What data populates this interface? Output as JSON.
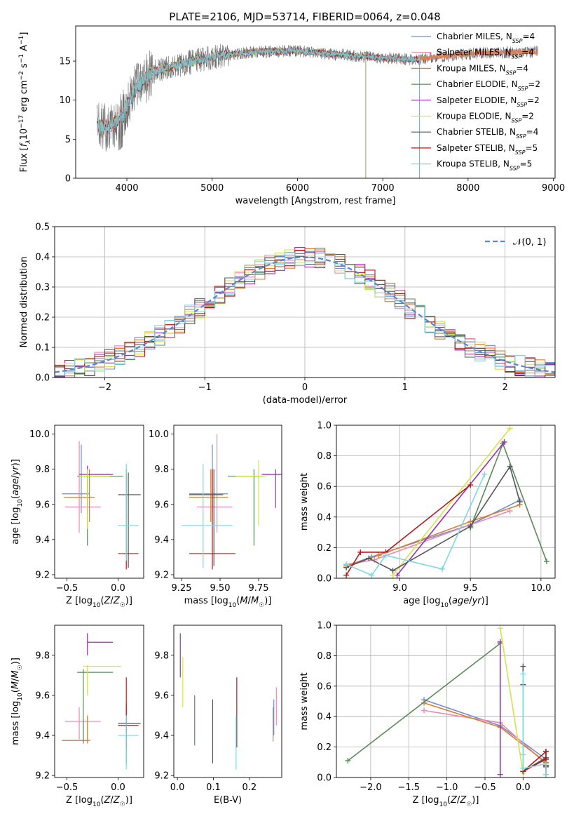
{
  "figure": {
    "title": "PLATE=2106, MJD=53714, FIBERID=0064, z=0.048",
    "colors": {
      "Chabrier MILES": "#6b8fd4",
      "Salpeter MILES": "#e88ab4",
      "Kroupa MILES": "#e07b2c",
      "Chabrier ELODIE": "#5a8a5a",
      "Salpeter ELODIE": "#9b2fae",
      "Kroupa ELODIE": "#d4e34a",
      "Chabrier STELIB": "#555555",
      "Salpeter STELIB": "#b21a1a",
      "Kroupa STELIB": "#7ed8e0",
      "normal": "#5b84d6"
    }
  },
  "chart_data": [
    {
      "id": "spectrum",
      "type": "line",
      "xlabel": "wavelength [Angstrom, rest frame]",
      "ylabel": "Flux [f_λ10^-17 erg cm^-2 s^-1 A^-1]",
      "xlim": [
        3400,
        9020
      ],
      "ylim": [
        0,
        19.5
      ],
      "xticks": [
        4000,
        5000,
        6000,
        7000,
        8000,
        9000
      ],
      "yticks": [
        0,
        5,
        10,
        15
      ],
      "grid": false,
      "legend_position": "top-right",
      "data_x_range": [
        3650,
        8820
      ],
      "data_profile_x": [
        3650,
        3800,
        3950,
        4100,
        4300,
        4600,
        5000,
        5500,
        6000,
        6500,
        7000,
        7400,
        7600,
        8000,
        8400,
        8820
      ],
      "data_profile_y": [
        6.5,
        6.5,
        8.0,
        11.5,
        13.5,
        14.5,
        15.5,
        16.2,
        16.3,
        15.8,
        15.4,
        15.2,
        15.5,
        15.9,
        16.1,
        16.2
      ],
      "series": [
        {
          "name": "Chabrier MILES",
          "nssp": "4"
        },
        {
          "name": "Salpeter MILES",
          "nssp": "4"
        },
        {
          "name": "Kroupa MILES",
          "nssp": "4"
        },
        {
          "name": "Chabrier ELODIE",
          "nssp": "2"
        },
        {
          "name": "Salpeter ELODIE",
          "nssp": "2"
        },
        {
          "name": "Kroupa ELODIE",
          "nssp": "2"
        },
        {
          "name": "Chabrier STELIB",
          "nssp": "4"
        },
        {
          "name": "Salpeter STELIB",
          "nssp": "5"
        },
        {
          "name": "Kroupa STELIB",
          "nssp": "5"
        }
      ],
      "model_ends": {
        "Kroupa ELODIE": 6800,
        "Chabrier ELODIE": 6800,
        "Salpeter ELODIE": 6800,
        "Chabrier STELIB": 7430,
        "Salpeter STELIB": 7430,
        "Kroupa STELIB": 7430
      }
    },
    {
      "id": "residuals",
      "type": "histogram",
      "xlabel": "(data-model)/error",
      "ylabel": "Normed distribution",
      "xlim": [
        -2.5,
        2.5
      ],
      "ylim": [
        0,
        0.5
      ],
      "xticks": [
        -2,
        -1,
        0,
        1,
        2
      ],
      "yticks": [
        0.0,
        0.1,
        0.2,
        0.3,
        0.4,
        0.5
      ],
      "grid": true,
      "legend": [
        {
          "name": "𝒩(0, 1)",
          "style": "dashed"
        }
      ],
      "legend_position": "top-right",
      "bin_width": 0.1,
      "bin_start": -2.5
    },
    {
      "id": "age_vs_Z",
      "type": "errorbar",
      "xlabel": "Z [log10(Z/Z☉)]",
      "ylabel": "age [log10(age/yr)]",
      "xlim": [
        -0.62,
        0.25
      ],
      "ylim": [
        9.18,
        10.05
      ],
      "xticks": [
        -0.5,
        0.0
      ],
      "yticks": [
        9.2,
        9.4,
        9.6,
        9.8,
        10.0
      ],
      "points": [
        {
          "model": "Chabrier MILES",
          "x": -0.36,
          "xlo": -0.55,
          "xhi": -0.28,
          "y": 9.66,
          "ylo": 9.55,
          "yhi": 9.94
        },
        {
          "model": "Salpeter MILES",
          "x": -0.38,
          "xlo": -0.52,
          "xhi": -0.17,
          "y": 9.585,
          "ylo": 9.44,
          "yhi": 9.96
        },
        {
          "model": "Kroupa MILES",
          "x": -0.28,
          "xlo": -0.53,
          "xhi": -0.23,
          "y": 9.64,
          "ylo": 9.5,
          "yhi": 9.8
        },
        {
          "model": "Chabrier ELODIE",
          "x": -0.3,
          "xlo": -0.4,
          "xhi": 0.05,
          "y": 9.76,
          "ylo": 9.365,
          "yhi": 9.8
        },
        {
          "model": "Salpeter ELODIE",
          "x": -0.3,
          "xlo": -0.38,
          "xhi": -0.05,
          "y": 9.77,
          "ylo": 9.55,
          "yhi": 9.82
        },
        {
          "model": "Kroupa ELODIE",
          "x": -0.3,
          "xlo": -0.38,
          "xhi": -0.08,
          "y": 9.76,
          "ylo": 9.46,
          "yhi": 9.8
        },
        {
          "model": "Chabrier STELIB",
          "x": 0.1,
          "xlo": 0.0,
          "xhi": 0.22,
          "y": 9.655,
          "ylo": 9.24,
          "yhi": 9.78
        },
        {
          "model": "Salpeter STELIB",
          "x": 0.08,
          "xlo": 0.0,
          "xhi": 0.2,
          "y": 9.32,
          "ylo": 9.23,
          "yhi": 9.8
        },
        {
          "model": "Kroupa STELIB",
          "x": 0.08,
          "xlo": 0.0,
          "xhi": 0.2,
          "y": 9.48,
          "ylo": 9.28,
          "yhi": 9.83
        }
      ]
    },
    {
      "id": "age_vs_mass",
      "type": "errorbar",
      "xlabel": "mass [log10(M/M☉)]",
      "ylabel": "",
      "xlim": [
        9.2,
        9.9
      ],
      "ylim": [
        9.18,
        10.05
      ],
      "xticks": [
        9.25,
        9.5,
        9.75
      ],
      "yticks": [
        9.2,
        9.4,
        9.6,
        9.8,
        10.0
      ],
      "points": [
        {
          "model": "Chabrier MILES",
          "x": 9.45,
          "xlo": 9.3,
          "xhi": 9.55,
          "y": 9.66,
          "ylo": 9.55,
          "yhi": 9.94
        },
        {
          "model": "Salpeter MILES",
          "x": 9.48,
          "xlo": 9.35,
          "xhi": 9.58,
          "y": 9.585,
          "ylo": 9.44,
          "yhi": 10.0
        },
        {
          "model": "Kroupa MILES",
          "x": 9.44,
          "xlo": 9.3,
          "xhi": 9.55,
          "y": 9.64,
          "ylo": 9.5,
          "yhi": 9.8
        },
        {
          "model": "Chabrier ELODIE",
          "x": 9.72,
          "xlo": 9.55,
          "xhi": 9.78,
          "y": 9.76,
          "ylo": 9.365,
          "yhi": 9.8
        },
        {
          "model": "Salpeter ELODIE",
          "x": 9.86,
          "xlo": 9.77,
          "xhi": 9.92,
          "y": 9.77,
          "ylo": 9.58,
          "yhi": 9.8
        },
        {
          "model": "Kroupa ELODIE",
          "x": 9.75,
          "xlo": 9.6,
          "xhi": 9.8,
          "y": 9.76,
          "ylo": 9.48,
          "yhi": 9.85
        },
        {
          "model": "Chabrier STELIB",
          "x": 9.46,
          "xlo": 9.3,
          "xhi": 9.52,
          "y": 9.655,
          "ylo": 9.25,
          "yhi": 9.8
        },
        {
          "model": "Salpeter STELIB",
          "x": 9.45,
          "xlo": 9.3,
          "xhi": 9.6,
          "y": 9.32,
          "ylo": 9.23,
          "yhi": 9.8
        },
        {
          "model": "Kroupa STELIB",
          "x": 9.39,
          "xlo": 9.25,
          "xhi": 9.58,
          "y": 9.48,
          "ylo": 9.24,
          "yhi": 9.83
        }
      ]
    },
    {
      "id": "mw_vs_age",
      "type": "line",
      "xlabel": "age [log10(age/yr)]",
      "ylabel": "mass weight",
      "xlim": [
        8.55,
        10.1
      ],
      "ylim": [
        0,
        1.0
      ],
      "xticks": [
        9.0,
        9.5,
        10.0
      ],
      "yticks": [
        0.0,
        0.2,
        0.4,
        0.6,
        0.8,
        1.0
      ],
      "grid": true,
      "series": [
        {
          "model": "Chabrier MILES",
          "x": [
            8.62,
            8.8,
            9.5,
            9.85
          ],
          "y": [
            0.08,
            0.14,
            0.35,
            0.51
          ]
        },
        {
          "model": "Salpeter MILES",
          "x": [
            8.62,
            8.82,
            9.5,
            9.78
          ],
          "y": [
            0.09,
            0.12,
            0.35,
            0.44
          ]
        },
        {
          "model": "Kroupa MILES",
          "x": [
            8.62,
            8.85,
            9.5,
            9.85
          ],
          "y": [
            0.08,
            0.15,
            0.37,
            0.48
          ]
        },
        {
          "model": "Chabrier ELODIE",
          "x": [
            9.5,
            9.73,
            10.04
          ],
          "y": [
            0.33,
            0.88,
            0.11
          ]
        },
        {
          "model": "Salpeter ELODIE",
          "x": [
            8.98,
            9.74
          ],
          "y": [
            0.02,
            0.89
          ]
        },
        {
          "model": "Kroupa ELODIE",
          "x": [
            8.95,
            9.78
          ],
          "y": [
            0.02,
            0.98
          ]
        },
        {
          "model": "Chabrier STELIB",
          "x": [
            8.62,
            8.78,
            8.95,
            9.5,
            9.78,
            9.85
          ],
          "y": [
            0.07,
            0.13,
            0.05,
            0.34,
            0.73,
            0.5
          ]
        },
        {
          "model": "Salpeter STELIB",
          "x": [
            8.62,
            8.72,
            8.9,
            9.5
          ],
          "y": [
            0.02,
            0.17,
            0.17,
            0.61
          ]
        },
        {
          "model": "Kroupa STELIB",
          "x": [
            8.62,
            8.8,
            8.9,
            9.3,
            9.6
          ],
          "y": [
            0.09,
            0.02,
            0.15,
            0.06,
            0.68
          ]
        }
      ]
    },
    {
      "id": "mass_vs_Z",
      "type": "errorbar",
      "xlabel": "Z [log10(Z/Z☉)]",
      "ylabel": "mass [log10(M/M☉)]",
      "xlim": [
        -0.62,
        0.25
      ],
      "ylim": [
        9.19,
        9.95
      ],
      "xticks": [
        -0.5,
        0.0
      ],
      "yticks": [
        9.2,
        9.4,
        9.6,
        9.8
      ],
      "points": [
        {
          "model": "Chabrier MILES",
          "x": -0.34,
          "xlo": -0.55,
          "xhi": -0.28,
          "y": 9.375,
          "ylo": 9.36,
          "yhi": 9.48
        },
        {
          "model": "Salpeter MILES",
          "x": -0.38,
          "xlo": -0.52,
          "xhi": -0.17,
          "y": 9.47,
          "ylo": 9.38,
          "yhi": 9.54
        },
        {
          "model": "Kroupa MILES",
          "x": -0.3,
          "xlo": -0.55,
          "xhi": -0.27,
          "y": 9.375,
          "ylo": 9.36,
          "yhi": 9.5
        },
        {
          "model": "Chabrier ELODIE",
          "x": -0.34,
          "xlo": -0.4,
          "xhi": -0.05,
          "y": 9.715,
          "ylo": 9.36,
          "yhi": 9.73
        },
        {
          "model": "Salpeter ELODIE",
          "x": -0.3,
          "xlo": -0.3,
          "xhi": -0.05,
          "y": 9.865,
          "ylo": 9.8,
          "yhi": 9.91
        },
        {
          "model": "Kroupa ELODIE",
          "x": -0.3,
          "xlo": -0.34,
          "xhi": 0.03,
          "y": 9.745,
          "ylo": 9.6,
          "yhi": 9.75
        },
        {
          "model": "Chabrier STELIB",
          "x": 0.08,
          "xlo": 0.0,
          "xhi": 0.22,
          "y": 9.46,
          "ylo": 9.26,
          "yhi": 9.56
        },
        {
          "model": "Salpeter STELIB",
          "x": 0.08,
          "xlo": 0.0,
          "xhi": 0.2,
          "y": 9.45,
          "ylo": 9.34,
          "yhi": 9.69
        },
        {
          "model": "Kroupa STELIB",
          "x": 0.08,
          "xlo": 0.0,
          "xhi": 0.2,
          "y": 9.4,
          "ylo": 9.23,
          "yhi": 9.5
        }
      ]
    },
    {
      "id": "mass_vs_EBV",
      "type": "errorbar",
      "xlabel": "E(B-V)",
      "ylabel": "",
      "xlim": [
        -0.01,
        0.29
      ],
      "ylim": [
        9.19,
        9.95
      ],
      "xticks": [
        0.0,
        0.1,
        0.2
      ],
      "yticks": [
        9.2,
        9.4,
        9.6,
        9.8
      ],
      "points": [
        {
          "model": "Chabrier MILES",
          "x": 0.268,
          "ylo": 9.4,
          "yhi": 9.58
        },
        {
          "model": "Salpeter MILES",
          "x": 0.275,
          "ylo": 9.45,
          "yhi": 9.64
        },
        {
          "model": "Kroupa MILES",
          "x": 0.266,
          "ylo": 9.37,
          "yhi": 9.54
        },
        {
          "model": "Chabrier ELODIE",
          "x": 0.048,
          "ylo": 9.35,
          "yhi": 9.6
        },
        {
          "model": "Salpeter ELODIE",
          "x": 0.008,
          "ylo": 9.69,
          "yhi": 9.91
        },
        {
          "model": "Kroupa ELODIE",
          "x": 0.015,
          "ylo": 9.54,
          "yhi": 9.79
        },
        {
          "model": "Chabrier STELIB",
          "x": 0.098,
          "ylo": 9.26,
          "yhi": 9.58
        },
        {
          "model": "Salpeter STELIB",
          "x": 0.165,
          "ylo": 9.34,
          "yhi": 9.69
        },
        {
          "model": "Kroupa STELIB",
          "x": 0.163,
          "ylo": 9.23,
          "yhi": 9.5
        }
      ]
    },
    {
      "id": "mw_vs_Z",
      "type": "line",
      "xlabel": "Z [log10(Z/Z☉)]",
      "ylabel": "mass weight",
      "xlim": [
        -2.45,
        0.42
      ],
      "ylim": [
        0,
        1.0
      ],
      "xticks": [
        -2.0,
        -1.5,
        -1.0,
        -0.5,
        0.0
      ],
      "yticks": [
        0.0,
        0.2,
        0.4,
        0.6,
        0.8,
        1.0
      ],
      "grid": true,
      "series": [
        {
          "model": "Chabrier MILES",
          "x": [
            -1.3,
            -0.3,
            0.3
          ],
          "y": [
            0.51,
            0.34,
            0.12
          ]
        },
        {
          "model": "Salpeter MILES",
          "x": [
            -1.3,
            -0.3,
            0.3
          ],
          "y": [
            0.44,
            0.36,
            0.09
          ]
        },
        {
          "model": "Kroupa MILES",
          "x": [
            -1.3,
            -0.3,
            0.3
          ],
          "y": [
            0.49,
            0.33,
            0.1
          ]
        },
        {
          "model": "Chabrier ELODIE",
          "x": [
            -2.3,
            -0.3
          ],
          "y": [
            0.11,
            0.88
          ]
        },
        {
          "model": "Salpeter ELODIE",
          "x": [
            -0.3,
            -0.3
          ],
          "y": [
            0.89,
            0.02
          ]
        },
        {
          "model": "Kroupa ELODIE",
          "x": [
            -0.3,
            0.0
          ],
          "y": [
            0.98,
            0.03
          ]
        },
        {
          "model": "Chabrier STELIB",
          "x": [
            0.0,
            0.0,
            0.0,
            0.3,
            0.3
          ],
          "y": [
            0.73,
            0.61,
            0.04,
            0.13,
            0.07
          ]
        },
        {
          "model": "Salpeter STELIB",
          "x": [
            0.3,
            0.3,
            0.3,
            0.0,
            0.3,
            0.3
          ],
          "y": [
            0.02,
            0.17,
            0.17,
            0.04,
            0.12,
            0.08
          ]
        },
        {
          "model": "Kroupa STELIB",
          "x": [
            0.0,
            0.0,
            0.0,
            0.3,
            0.3
          ],
          "y": [
            0.68,
            0.15,
            0.06,
            0.09,
            0.02
          ]
        }
      ]
    }
  ]
}
